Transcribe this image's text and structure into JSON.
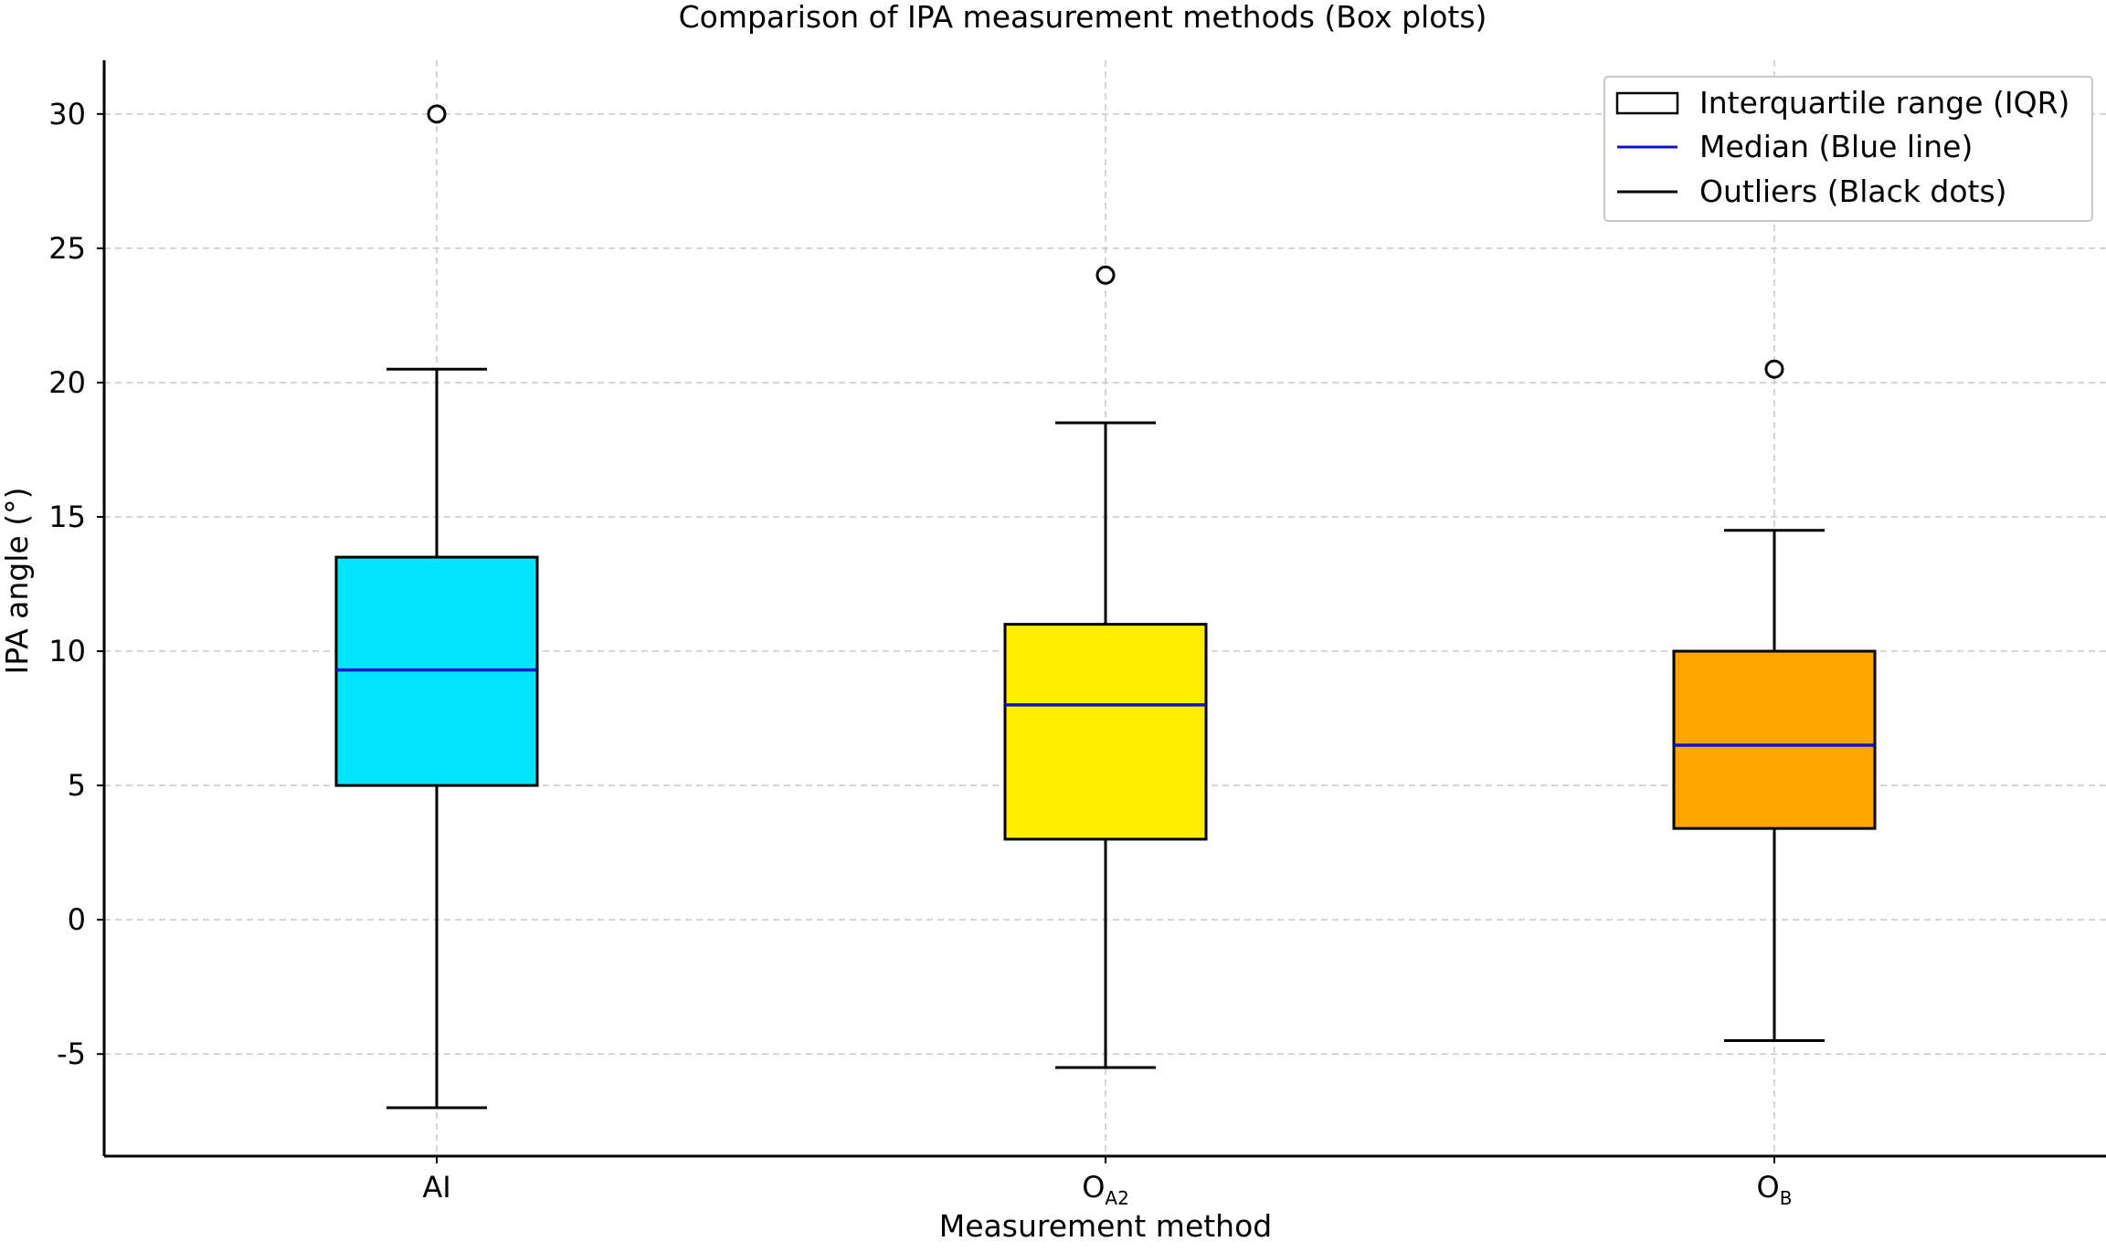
{
  "chart_data": {
    "type": "box",
    "title": "Comparison of IPA measurement methods (Box plots)",
    "xlabel": "Measurement method",
    "ylabel": "IPA angle (°)",
    "ylim": [
      -8.8,
      32
    ],
    "yticks": [
      -5,
      0,
      5,
      10,
      15,
      20,
      25,
      30
    ],
    "grid": true,
    "legend_position": "top-right",
    "categories": [
      {
        "label": "AI",
        "sub": ""
      },
      {
        "label": "O",
        "sub": "A2"
      },
      {
        "label": "O",
        "sub": "B"
      }
    ],
    "boxes": [
      {
        "whisker_low": -7,
        "q1": 5,
        "median": 9.3,
        "q3": 13.5,
        "whisker_high": 20.5,
        "outliers": [
          30
        ],
        "color": "#00e5ff"
      },
      {
        "whisker_low": -5.5,
        "q1": 3,
        "median": 8,
        "q3": 11,
        "whisker_high": 18.5,
        "outliers": [
          24
        ],
        "color": "#ffee00"
      },
      {
        "whisker_low": -4.5,
        "q1": 3.4,
        "median": 6.5,
        "q3": 10,
        "whisker_high": 14.5,
        "outliers": [
          20.5
        ],
        "color": "#ffa500"
      }
    ],
    "median_color": "#1010cc",
    "legend": [
      {
        "label": "Interquartile range (IQR)",
        "marker": "box"
      },
      {
        "label": "Median (Blue line)",
        "marker": "blue-line"
      },
      {
        "label": "Outliers (Black dots)",
        "marker": "black-line"
      }
    ]
  }
}
